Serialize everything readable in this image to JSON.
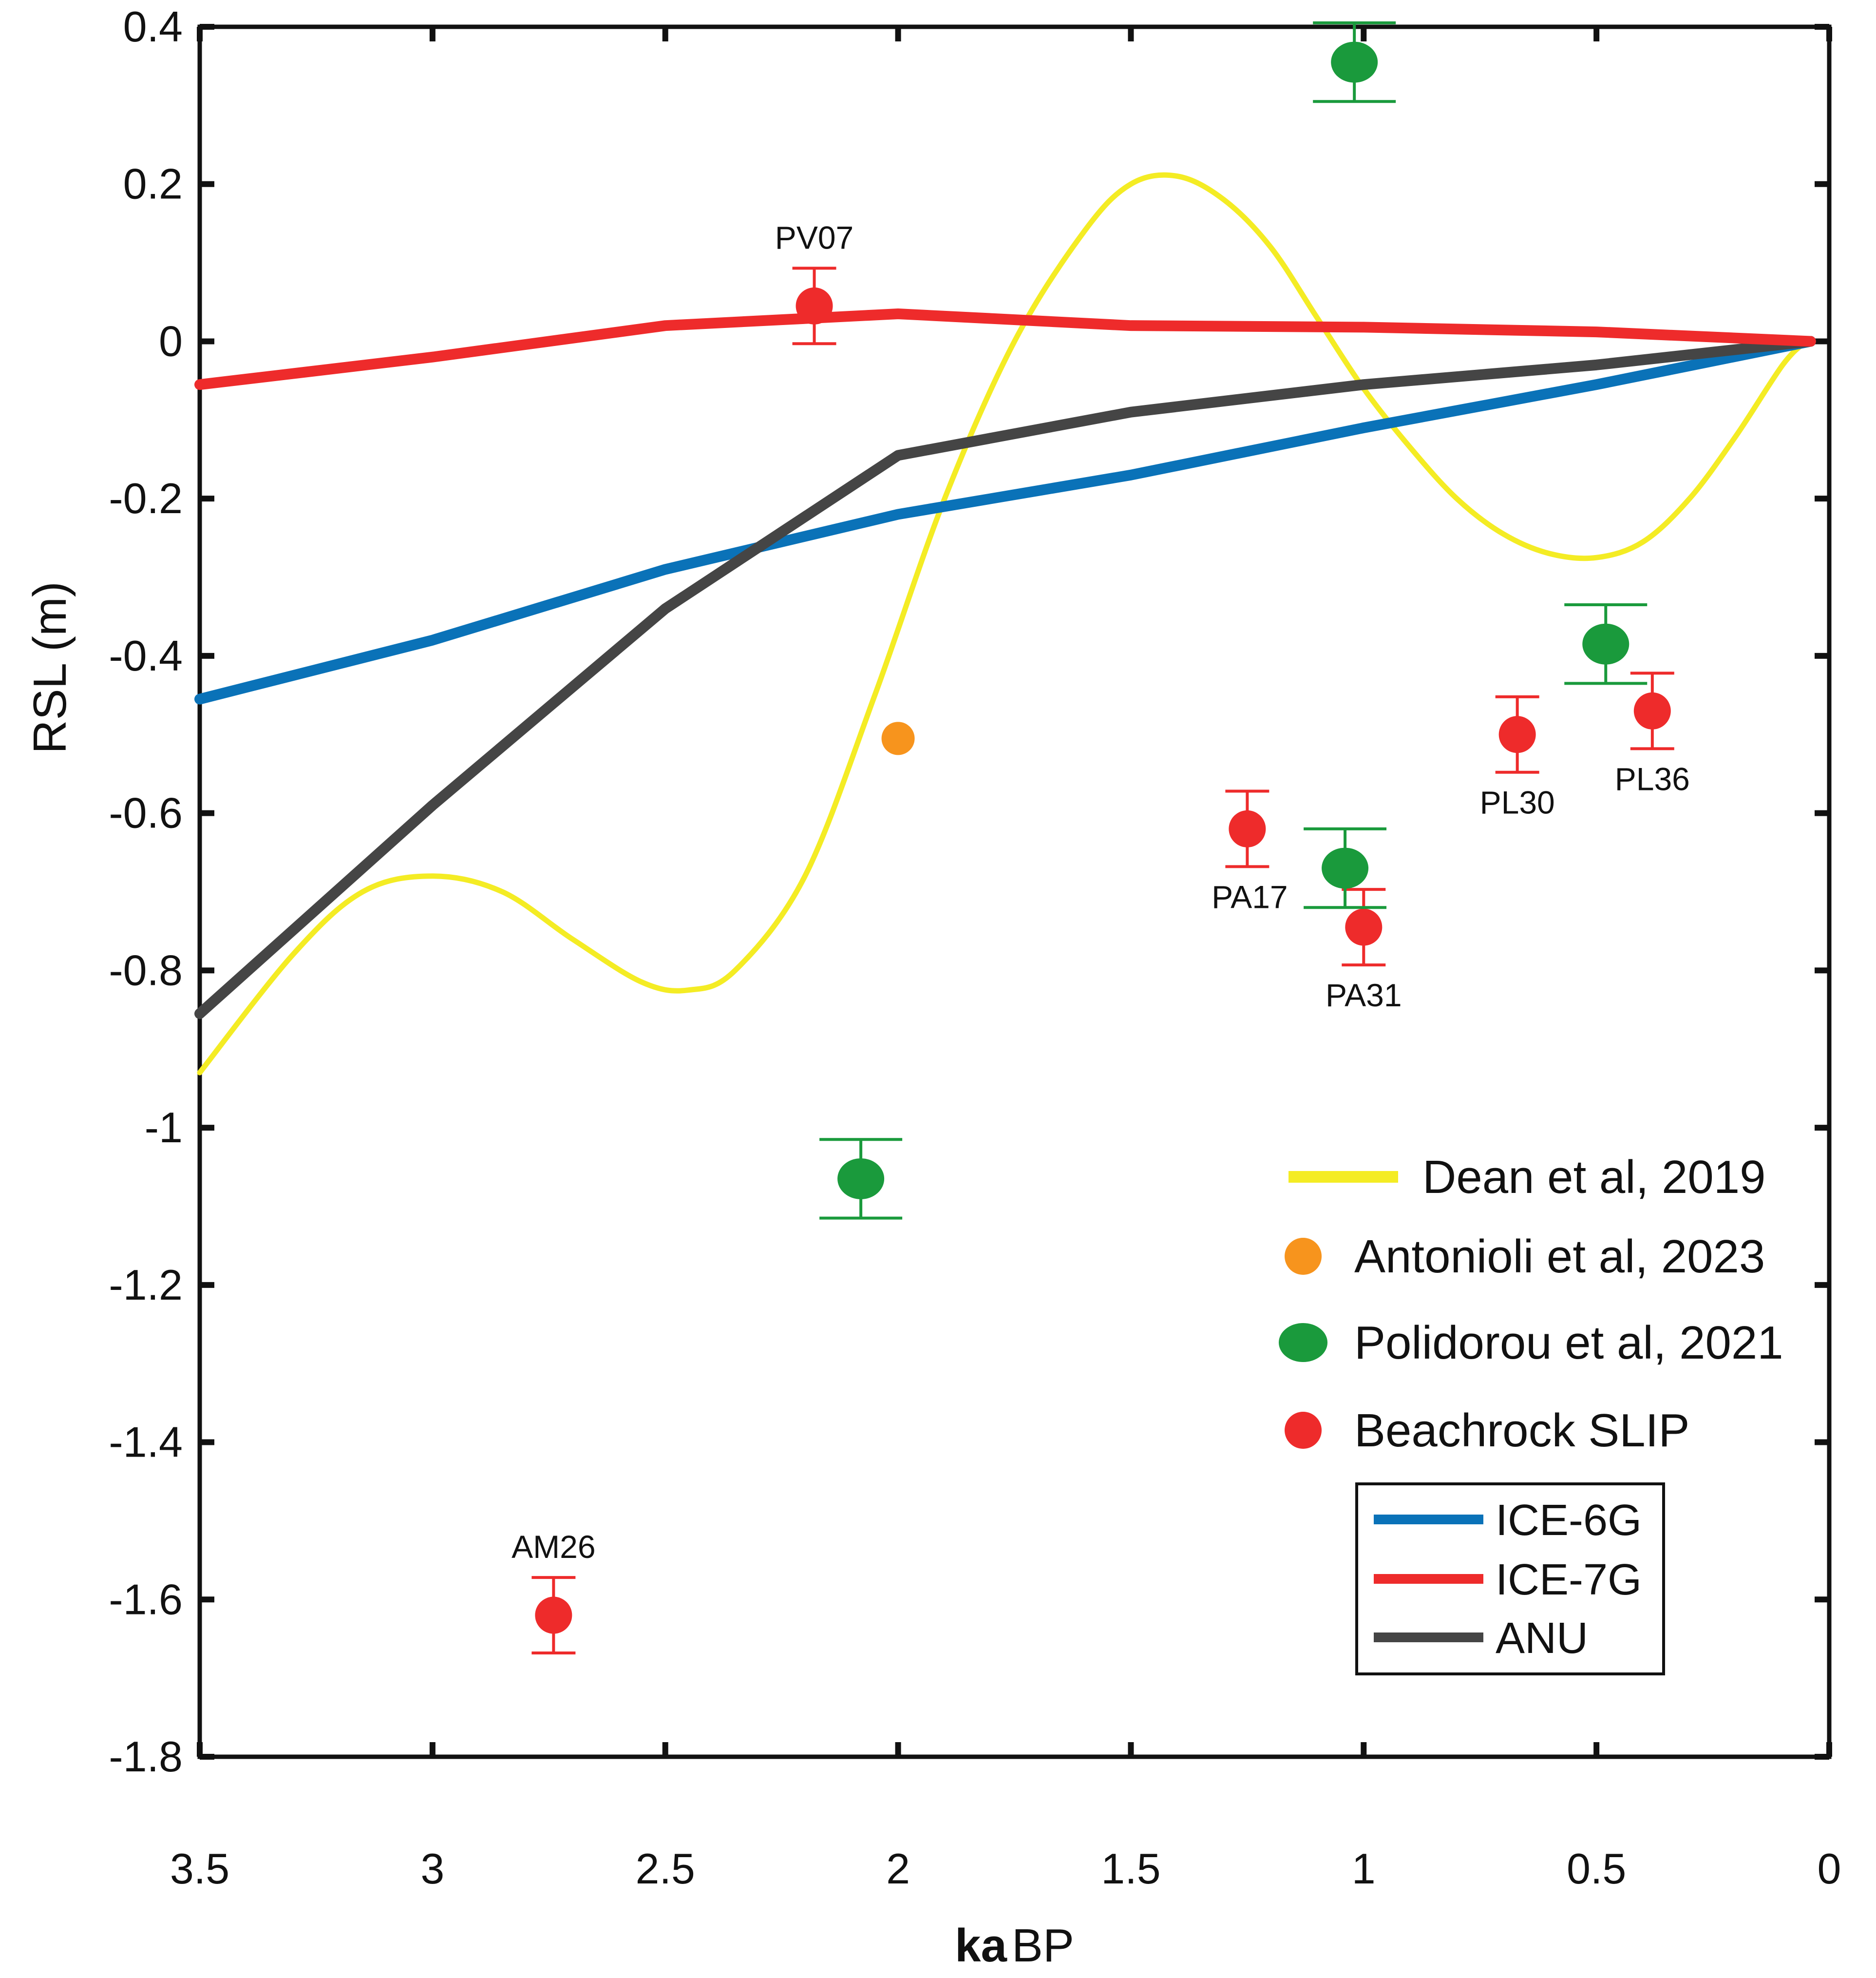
{
  "chart_data": {
    "type": "line",
    "title": "",
    "xlabel": "ka BP",
    "xlabel_parts": [
      "ka",
      "BP"
    ],
    "ylabel": "RSL (m)",
    "xlim": [
      3.5,
      0
    ],
    "ylim": [
      -1.8,
      0.4
    ],
    "x_ticks": [
      3.5,
      3,
      2.5,
      2,
      1.5,
      1,
      0.5,
      0
    ],
    "x_tick_labels": [
      "3.5",
      "3",
      "2.5",
      "2",
      "1.5",
      "1",
      "0.5",
      "0"
    ],
    "y_ticks": [
      0.4,
      0.2,
      0,
      -0.2,
      -0.4,
      -0.6,
      -0.8,
      -1,
      -1.2,
      -1.4,
      -1.6,
      -1.8
    ],
    "y_tick_labels": [
      "0.4",
      "0.2",
      "0",
      "-0.2",
      "-0.4",
      "-0.6",
      "-0.8",
      "-1",
      "-1.2",
      "-1.4",
      "-1.6",
      "-1.8"
    ],
    "grid": false,
    "series": [
      {
        "name": "ICE-6G",
        "color": "#0a72b8",
        "x": [
          3.5,
          3.0,
          2.5,
          2.0,
          1.5,
          1.0,
          0.5,
          0.04
        ],
        "values": [
          -0.455,
          -0.38,
          -0.29,
          -0.22,
          -0.17,
          -0.11,
          -0.055,
          0.0
        ]
      },
      {
        "name": "ICE-7G",
        "color": "#ee2b2b",
        "x": [
          3.5,
          3.0,
          2.5,
          2.0,
          1.5,
          1.0,
          0.5,
          0.04
        ],
        "values": [
          -0.055,
          -0.02,
          0.02,
          0.035,
          0.02,
          0.018,
          0.012,
          0.0
        ]
      },
      {
        "name": "ANU",
        "color": "#454545",
        "x": [
          3.5,
          3.0,
          2.5,
          2.0,
          1.5,
          1.0,
          0.5,
          0.04
        ],
        "values": [
          -0.855,
          -0.59,
          -0.34,
          -0.145,
          -0.09,
          -0.055,
          -0.03,
          0.0
        ]
      },
      {
        "name": "Dean et al, 2019",
        "color": "#f4ec24",
        "x": [
          3.5,
          3.3,
          3.15,
          3.0,
          2.85,
          2.7,
          2.55,
          2.45,
          2.35,
          2.2,
          2.05,
          1.9,
          1.75,
          1.6,
          1.5,
          1.4,
          1.3,
          1.2,
          1.1,
          1.0,
          0.9,
          0.8,
          0.7,
          0.6,
          0.5,
          0.4,
          0.3,
          0.2,
          0.1,
          0.05
        ],
        "values": [
          -0.93,
          -0.78,
          -0.7,
          -0.68,
          -0.7,
          -0.76,
          -0.815,
          -0.825,
          -0.8,
          -0.68,
          -0.45,
          -0.2,
          0.0,
          0.14,
          0.2,
          0.21,
          0.18,
          0.12,
          0.03,
          -0.06,
          -0.135,
          -0.2,
          -0.245,
          -0.27,
          -0.275,
          -0.255,
          -0.2,
          -0.12,
          -0.03,
          0.0
        ]
      }
    ],
    "points": [
      {
        "group": "Beachrock SLIP",
        "label": "PV07",
        "x": 2.18,
        "y": 0.045,
        "err": 0.048,
        "color": "#ee2b2b",
        "label_pos": "above"
      },
      {
        "group": "Beachrock SLIP",
        "label": "AM26",
        "x": 2.74,
        "y": -1.62,
        "err": 0.048,
        "color": "#ee2b2b",
        "label_pos": "above"
      },
      {
        "group": "Beachrock SLIP",
        "label": "PA17",
        "x": 1.25,
        "y": -0.62,
        "err": 0.048,
        "color": "#ee2b2b",
        "label_pos": "below"
      },
      {
        "group": "Beachrock SLIP",
        "label": "PA31",
        "x": 1.0,
        "y": -0.745,
        "err": 0.048,
        "color": "#ee2b2b",
        "label_pos": "below"
      },
      {
        "group": "Beachrock SLIP",
        "label": "PL30",
        "x": 0.67,
        "y": -0.5,
        "err": 0.048,
        "color": "#ee2b2b",
        "label_pos": "below"
      },
      {
        "group": "Beachrock SLIP",
        "label": "PL36",
        "x": 0.38,
        "y": -0.47,
        "err": 0.048,
        "color": "#ee2b2b",
        "label_pos": "below"
      },
      {
        "group": "Polidorou et al, 2021",
        "label": "",
        "x": 1.02,
        "y": 0.355,
        "err": 0.05,
        "color": "#1a9a3c"
      },
      {
        "group": "Polidorou et al, 2021",
        "label": "",
        "x": 0.48,
        "y": -0.385,
        "err": 0.05,
        "color": "#1a9a3c"
      },
      {
        "group": "Polidorou et al, 2021",
        "label": "",
        "x": 1.04,
        "y": -0.67,
        "err": 0.05,
        "color": "#1a9a3c"
      },
      {
        "group": "Polidorou et al, 2021",
        "label": "",
        "x": 2.08,
        "y": -1.065,
        "err": 0.05,
        "color": "#1a9a3c"
      },
      {
        "group": "Antonioli et al, 2023",
        "label": "",
        "x": 2.0,
        "y": -0.505,
        "err": 0,
        "color": "#f7941d"
      }
    ],
    "legend_outer": [
      {
        "label": "Dean et al, 2019",
        "symbol": "line",
        "color": "#f4ec24"
      },
      {
        "label": "Antonioli et al, 2023",
        "symbol": "dot",
        "color": "#f7941d"
      },
      {
        "label": "Polidorou et al, 2021",
        "symbol": "oval",
        "color": "#1a9a3c"
      },
      {
        "label": "Beachrock SLIP",
        "symbol": "dot",
        "color": "#ee2b2b"
      }
    ],
    "legend_box": [
      {
        "label": "ICE-6G",
        "color": "#0a72b8"
      },
      {
        "label": "ICE-7G",
        "color": "#ee2b2b"
      },
      {
        "label": "ANU",
        "color": "#454545"
      }
    ],
    "legend_position": "bottom-right"
  }
}
